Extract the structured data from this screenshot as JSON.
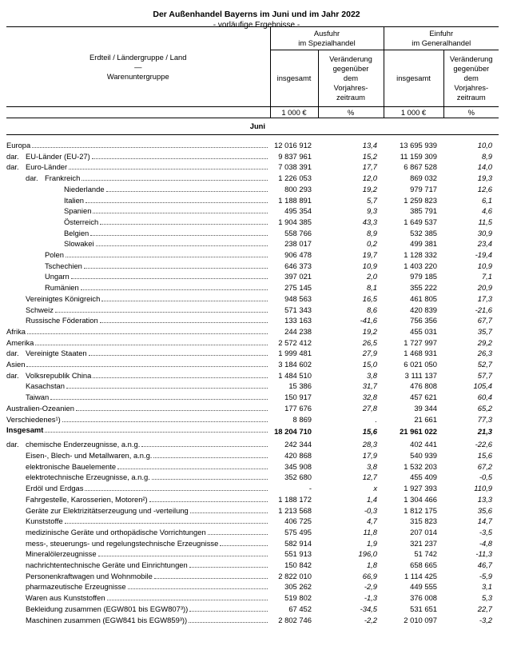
{
  "header": {
    "title": "Der Außenhandel Bayerns im Juni und im Jahr 2022",
    "subtitle": "- vorläufige Ergebnisse -"
  },
  "table": {
    "stub": [
      "Erdteil / Ländergruppe / Land",
      "—",
      "Warenuntergruppe"
    ],
    "groups": [
      [
        "Ausfuhr",
        "im Spezialhandel"
      ],
      [
        "Einfuhr",
        "im Generalhandel"
      ]
    ],
    "columns": [
      [
        "insgesamt"
      ],
      [
        "Veränderung",
        "gegenüber",
        "dem",
        "Vorjahres-",
        "zeitraum"
      ],
      [
        "insgesamt"
      ],
      [
        "Veränderung",
        "gegenüber",
        "dem",
        "Vorjahres-",
        "zeitraum"
      ]
    ],
    "units": [
      "1 000 €",
      "%",
      "1 000 €",
      "%"
    ],
    "section": "Juni",
    "rows": [
      {
        "label": "Europa",
        "level": 0,
        "cells": [
          "12 016 912",
          "13,4",
          "13 695 939",
          "10,0"
        ]
      },
      {
        "prefix": "dar.",
        "label": "EU-Länder (EU-27)",
        "level": 0,
        "cells": [
          "9 837 961",
          "15,2",
          "11 159 309",
          "8,9"
        ]
      },
      {
        "prefix": "dar.",
        "label": "Euro-Länder",
        "level": 1,
        "cells": [
          "7 038 391",
          "17,7",
          "6 867 528",
          "14,0"
        ]
      },
      {
        "prefix": "dar.",
        "label": "Frankreich",
        "level": 2,
        "cells": [
          "1 226 053",
          "12,0",
          "869 032",
          "19,3"
        ]
      },
      {
        "label": "Niederlande",
        "level": 3,
        "cells": [
          "800 293",
          "19,2",
          "979 717",
          "12,6"
        ]
      },
      {
        "label": "Italien",
        "level": 3,
        "cells": [
          "1 188 891",
          "5,7",
          "1 259 823",
          "6,1"
        ]
      },
      {
        "label": "Spanien",
        "level": 3,
        "cells": [
          "495 354",
          "9,3",
          "385 791",
          "4,6"
        ]
      },
      {
        "label": "Österreich",
        "level": 3,
        "cells": [
          "1 904 385",
          "43,3",
          "1 649 537",
          "11,5"
        ]
      },
      {
        "label": "Belgien",
        "level": 3,
        "cells": [
          "558 766",
          "8,9",
          "532 385",
          "30,9"
        ]
      },
      {
        "label": "Slowakei",
        "level": 3,
        "cells": [
          "238 017",
          "0,2",
          "499 381",
          "23,4"
        ]
      },
      {
        "label": "Polen",
        "level": 2,
        "cells": [
          "906 478",
          "19,7",
          "1 128 332",
          "-19,4"
        ]
      },
      {
        "label": "Tschechien",
        "level": 2,
        "cells": [
          "646 373",
          "10,9",
          "1 403 220",
          "10,9"
        ]
      },
      {
        "label": "Ungarn",
        "level": 2,
        "cells": [
          "397 021",
          "2,0",
          "979 185",
          "7,1"
        ]
      },
      {
        "label": "Rumänien",
        "level": 2,
        "cells": [
          "275 145",
          "8,1",
          "355 222",
          "20,9"
        ]
      },
      {
        "label": "Vereinigtes Königreich",
        "level": 1,
        "cells": [
          "948 563",
          "16,5",
          "461 805",
          "17,3"
        ]
      },
      {
        "label": "Schweiz",
        "level": 1,
        "cells": [
          "571 343",
          "8,6",
          "420 839",
          "-21,6"
        ]
      },
      {
        "label": "Russische Föderation",
        "level": 1,
        "cells": [
          "133 163",
          "-41,6",
          "756 356",
          "67,7"
        ]
      },
      {
        "label": "Afrika",
        "level": 0,
        "cells": [
          "244 238",
          "19,2",
          "455 031",
          "35,7"
        ]
      },
      {
        "label": "Amerika",
        "level": 0,
        "cells": [
          "2 572 412",
          "26,5",
          "1 727 997",
          "29,2"
        ]
      },
      {
        "prefix": "dar.",
        "label": "Vereinigte Staaten",
        "level": 0,
        "cells": [
          "1 999 481",
          "27,9",
          "1 468 931",
          "26,3"
        ]
      },
      {
        "label": "Asien",
        "level": 0,
        "cells": [
          "3 184 602",
          "15,0",
          "6 021 050",
          "52,7"
        ]
      },
      {
        "prefix": "dar.",
        "label": "Volksrepublik China",
        "level": 0,
        "cells": [
          "1 484 510",
          "3,8",
          "3 111 137",
          "57,7"
        ]
      },
      {
        "label": "Kasachstan",
        "level": 1,
        "cells": [
          "15 386",
          "31,7",
          "476 808",
          "105,4"
        ]
      },
      {
        "label": "Taiwan",
        "level": 1,
        "cells": [
          "150 917",
          "32,8",
          "457 621",
          "60,4"
        ]
      },
      {
        "label": "Australien-Ozeanien",
        "level": 0,
        "cells": [
          "177 676",
          "27,8",
          "39 344",
          "65,2"
        ]
      },
      {
        "label": "Verschiedenes¹)",
        "level": 0,
        "cells": [
          "8 869",
          ".",
          "21 661",
          "77,3"
        ]
      }
    ],
    "total": {
      "label": "Insgesamt",
      "cells": [
        "18 204 710",
        "15,6",
        "21 961 022",
        "21,3"
      ]
    },
    "goods": [
      {
        "prefix": "dar.",
        "label": "chemische Enderzeugnisse, a.n.g.",
        "level": 1,
        "cells": [
          "242 344",
          "28,3",
          "402 441",
          "-22,6"
        ]
      },
      {
        "label": "Eisen-, Blech- und Metallwaren, a.n.g.",
        "level": 1,
        "cells": [
          "420 868",
          "17,9",
          "540 939",
          "15,6"
        ]
      },
      {
        "label": "elektronische Bauelemente",
        "level": 1,
        "cells": [
          "345 908",
          "3,8",
          "1 532 203",
          "67,2"
        ]
      },
      {
        "label": "elektrotechnische Erzeugnisse, a.n.g.",
        "level": 1,
        "cells": [
          "352 680",
          "12,7",
          "455 409",
          "-0,5"
        ]
      },
      {
        "label": "Erdöl und Erdgas",
        "level": 1,
        "cells": [
          "-",
          "x",
          "1 927 393",
          "110,9"
        ]
      },
      {
        "label": "Fahrgestelle, Karosserien, Motoren²)",
        "level": 1,
        "cells": [
          "1 188 172",
          "1,4",
          "1 304 466",
          "13,3"
        ]
      },
      {
        "label": "Geräte zur Elektrizitätserzeugung und -verteilung",
        "level": 1,
        "cells": [
          "1 213 568",
          "-0,3",
          "1 812 175",
          "35,6"
        ]
      },
      {
        "label": "Kunststoffe",
        "level": 1,
        "cells": [
          "406 725",
          "4,7",
          "315 823",
          "14,7"
        ]
      },
      {
        "label": "medizinische Geräte und orthopädische Vorrichtungen",
        "level": 1,
        "cells": [
          "575 495",
          "11,8",
          "207 014",
          "-3,5"
        ]
      },
      {
        "label": "mess-, steuerungs- und regelungstechnische Erzeugnisse",
        "level": 1,
        "cells": [
          "582 914",
          "1,9",
          "321 237",
          "-4,8"
        ]
      },
      {
        "label": "Mineralölerzeugnisse",
        "level": 1,
        "cells": [
          "551 913",
          "196,0",
          "51 742",
          "-11,3"
        ]
      },
      {
        "label": "nachrichtentechnische Geräte und Einrichtungen",
        "level": 1,
        "cells": [
          "150 842",
          "1,8",
          "658 665",
          "46,7"
        ]
      },
      {
        "label": "Personenkraftwagen und Wohnmobile",
        "level": 1,
        "cells": [
          "2 822 010",
          "66,9",
          "1 114 425",
          "-5,9"
        ]
      },
      {
        "label": "pharmazeutische Erzeugnisse",
        "level": 1,
        "cells": [
          "305 262",
          "-2,9",
          "449 555",
          "3,1"
        ]
      },
      {
        "label": "Waren aus Kunststoffen",
        "level": 1,
        "cells": [
          "519 802",
          "-1,3",
          "376 008",
          "5,3"
        ]
      },
      {
        "label": "Bekleidung zusammen (EGW801 bis EGW807³))",
        "level": 1,
        "cells": [
          "67 452",
          "-34,5",
          "531 651",
          "22,7"
        ]
      },
      {
        "label": "Maschinen zusammen (EGW841 bis EGW859³))",
        "level": 1,
        "cells": [
          "2 802 746",
          "-2,2",
          "2 010 097",
          "-3,2"
        ]
      }
    ]
  }
}
